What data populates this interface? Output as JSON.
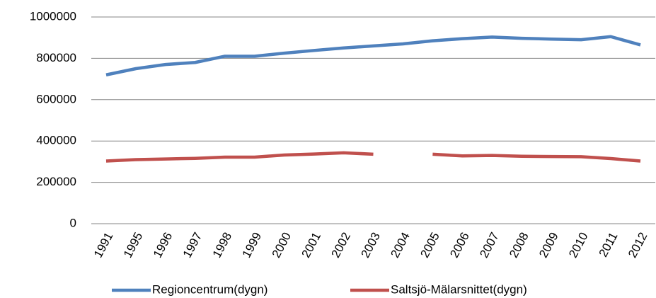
{
  "chart_data": {
    "type": "line",
    "categories": [
      "1991",
      "1995",
      "1996",
      "1997",
      "1998",
      "1999",
      "2000",
      "2001",
      "2002",
      "2003",
      "2004",
      "2005",
      "2006",
      "2007",
      "2008",
      "2009",
      "2010",
      "2011",
      "2012"
    ],
    "series": [
      {
        "name": "Regioncentrum(dygn)",
        "color": "#4f81bd",
        "values": [
          720000,
          750000,
          770000,
          780000,
          810000,
          810000,
          825000,
          838000,
          850000,
          860000,
          870000,
          885000,
          895000,
          903000,
          897000,
          893000,
          890000,
          905000,
          865000
        ]
      },
      {
        "name": "Saltsjö-Mälarsnittet(dygn)",
        "color": "#c0504d",
        "values": [
          303000,
          310000,
          313000,
          316000,
          322000,
          322000,
          332000,
          337000,
          343000,
          336000,
          null,
          336000,
          328000,
          330000,
          326000,
          325000,
          324000,
          315000,
          303000
        ]
      }
    ],
    "ylim": [
      0,
      1000000
    ],
    "yticks": [
      0,
      200000,
      400000,
      600000,
      800000,
      1000000
    ],
    "grid": true,
    "legend": "bottom"
  }
}
